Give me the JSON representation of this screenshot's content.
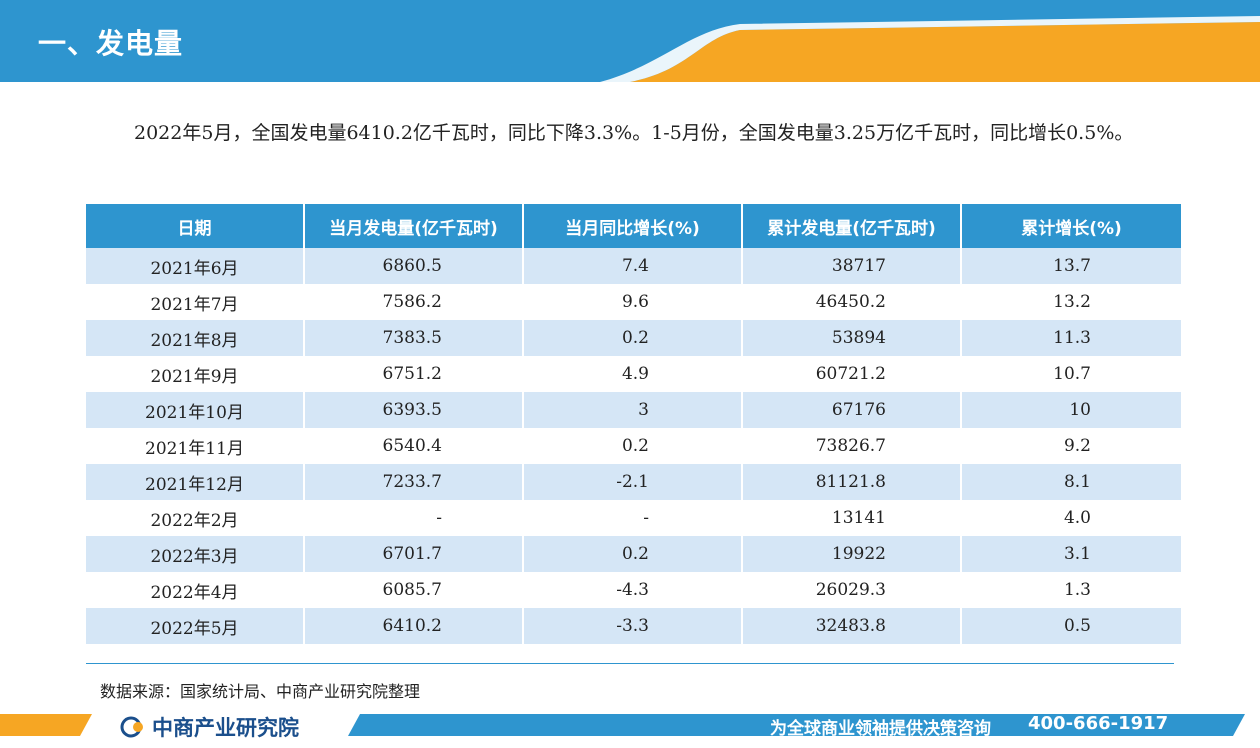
{
  "header": {
    "title": "一、发电量"
  },
  "intro": "2022年5月，全国发电量6410.2亿千瓦时，同比下降3.3%。1-5月份，全国发电量3.25万亿千瓦时，同比增长0.5%。",
  "table": {
    "columns": [
      "日期",
      "当月发电量(亿千瓦时)",
      "当月同比增长(%)",
      "累计发电量(亿千瓦时)",
      "累计增长(%)"
    ],
    "rows": [
      [
        "2021年6月",
        "6860.5",
        "7.4",
        "38717",
        "13.7"
      ],
      [
        "2021年7月",
        "7586.2",
        "9.6",
        "46450.2",
        "13.2"
      ],
      [
        "2021年8月",
        "7383.5",
        "0.2",
        "53894",
        "11.3"
      ],
      [
        "2021年9月",
        "6751.2",
        "4.9",
        "60721.2",
        "10.7"
      ],
      [
        "2021年10月",
        "6393.5",
        "3",
        "67176",
        "10"
      ],
      [
        "2021年11月",
        "6540.4",
        "0.2",
        "73826.7",
        "9.2"
      ],
      [
        "2021年12月",
        "7233.7",
        "-2.1",
        "81121.8",
        "8.1"
      ],
      [
        "2022年2月",
        "-",
        "-",
        "13141",
        "4.0"
      ],
      [
        "2022年3月",
        "6701.7",
        "0.2",
        "19922",
        "3.1"
      ],
      [
        "2022年4月",
        "6085.7",
        "-4.3",
        "26029.3",
        "1.3"
      ],
      [
        "2022年5月",
        "6410.2",
        "-3.3",
        "32483.8",
        "0.5"
      ]
    ]
  },
  "source": "数据来源：国家统计局、中商产业研究院整理",
  "footer": {
    "logo_text": "中商产业研究院",
    "slogan": "为全球商业领袖提供决策咨询",
    "phone": "400-666-1917"
  },
  "colors": {
    "primary": "#2e95cf",
    "accent": "#f6a623",
    "row_alt": "#d5e6f6"
  }
}
